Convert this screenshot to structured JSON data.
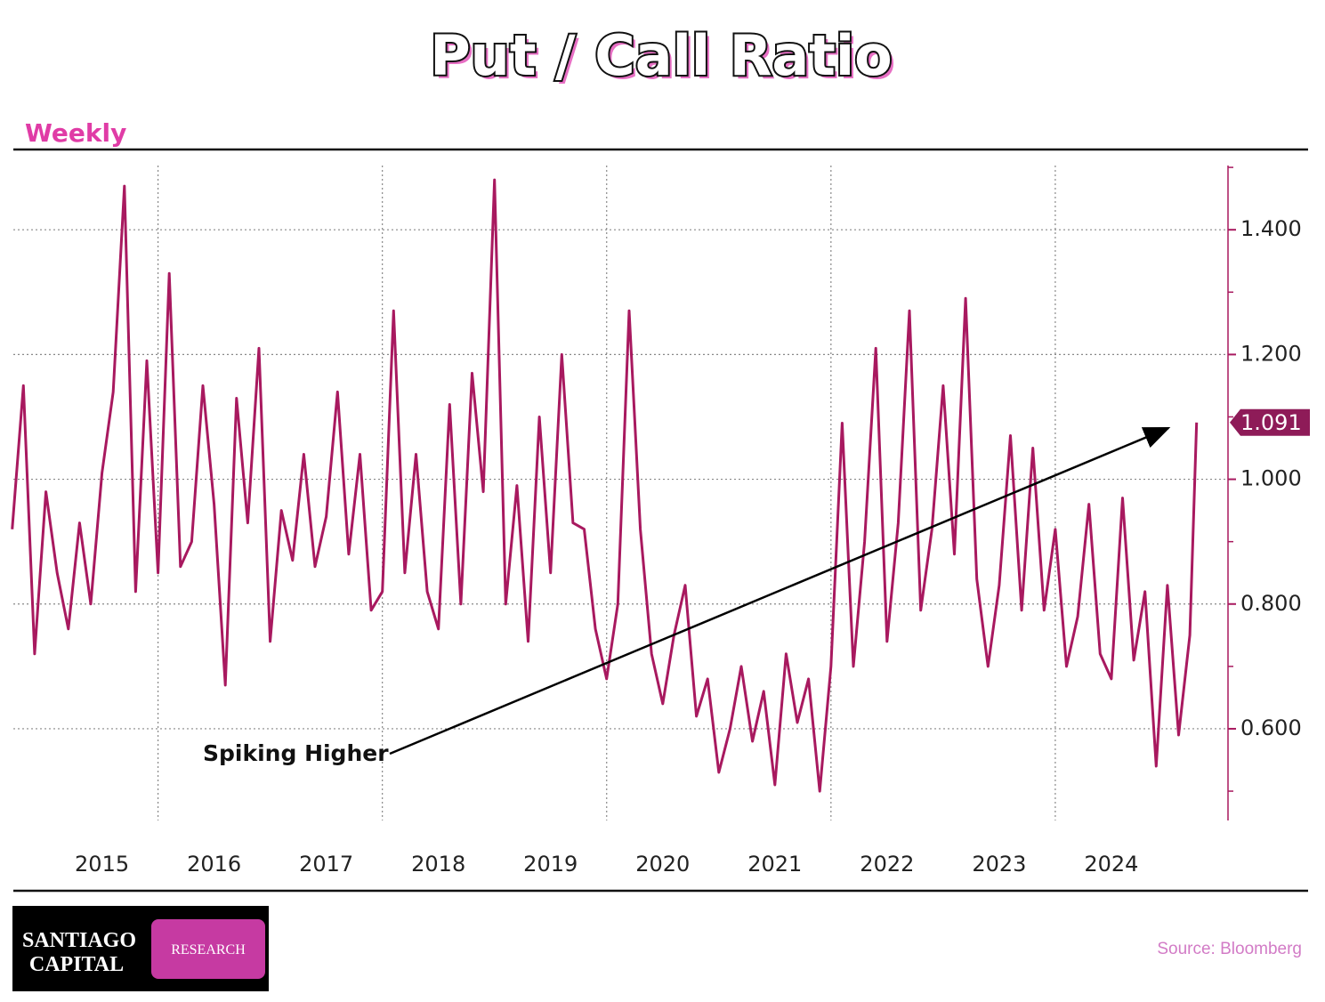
{
  "chart_data": {
    "type": "line",
    "title": "Put / Call Ratio",
    "subtitle": "Weekly",
    "source": "Source: Bloomberg",
    "logo": {
      "name_line1": "SANTIAGO",
      "name_line2": "CAPITAL",
      "badge": "RESEARCH"
    },
    "annotation": "Spiking Higher",
    "x": [
      2014.7,
      2014.8,
      2014.9,
      2015.0,
      2015.1,
      2015.2,
      2015.3,
      2015.4,
      2015.5,
      2015.6,
      2015.7,
      2015.8,
      2015.9,
      2016.0,
      2016.1,
      2016.2,
      2016.3,
      2016.4,
      2016.5,
      2016.6,
      2016.7,
      2016.8,
      2016.9,
      2017.0,
      2017.1,
      2017.2,
      2017.3,
      2017.4,
      2017.5,
      2017.6,
      2017.7,
      2017.8,
      2017.9,
      2018.0,
      2018.1,
      2018.2,
      2018.3,
      2018.4,
      2018.5,
      2018.6,
      2018.7,
      2018.8,
      2018.9,
      2019.0,
      2019.1,
      2019.2,
      2019.3,
      2019.4,
      2019.5,
      2019.6,
      2019.7,
      2019.8,
      2019.9,
      2020.0,
      2020.1,
      2020.2,
      2020.3,
      2020.4,
      2020.5,
      2020.6,
      2020.7,
      2020.8,
      2020.9,
      2021.0,
      2021.1,
      2021.2,
      2021.3,
      2021.4,
      2021.5,
      2021.6,
      2021.7,
      2021.8,
      2021.9,
      2022.0,
      2022.1,
      2022.2,
      2022.3,
      2022.4,
      2022.5,
      2022.6,
      2022.7,
      2022.8,
      2022.9,
      2023.0,
      2023.1,
      2023.2,
      2023.3,
      2023.4,
      2023.5,
      2023.6,
      2023.7,
      2023.8,
      2023.9,
      2024.0,
      2024.1,
      2024.2,
      2024.3,
      2024.4,
      2024.5,
      2024.6,
      2024.7,
      2024.8,
      2024.9,
      2025.0,
      2025.1,
      2025.2,
      2025.26
    ],
    "series": [
      {
        "name": "Put / Call Ratio",
        "color": "#a8195f",
        "values": [
          0.92,
          1.15,
          0.72,
          0.98,
          0.85,
          0.76,
          0.93,
          0.8,
          1.01,
          1.14,
          1.47,
          0.82,
          1.19,
          0.85,
          1.33,
          0.86,
          0.9,
          1.15,
          0.96,
          0.67,
          1.13,
          0.93,
          1.21,
          0.74,
          0.95,
          0.87,
          1.04,
          0.86,
          0.94,
          1.14,
          0.88,
          1.04,
          0.79,
          0.82,
          1.27,
          0.85,
          1.04,
          0.82,
          0.76,
          1.12,
          0.8,
          1.17,
          0.98,
          1.48,
          0.8,
          0.99,
          0.74,
          1.1,
          0.85,
          1.2,
          0.93,
          0.92,
          0.76,
          0.68,
          0.8,
          1.27,
          0.92,
          0.72,
          0.64,
          0.75,
          0.83,
          0.62,
          0.68,
          0.53,
          0.6,
          0.7,
          0.58,
          0.66,
          0.51,
          0.72,
          0.61,
          0.68,
          0.5,
          0.7,
          1.09,
          0.7,
          0.9,
          1.21,
          0.74,
          0.93,
          1.27,
          0.79,
          0.92,
          1.15,
          0.88,
          1.29,
          0.84,
          0.7,
          0.83,
          1.07,
          0.79,
          1.05,
          0.79,
          0.92,
          0.7,
          0.78,
          0.96,
          0.72,
          0.68,
          0.97,
          0.71,
          0.82,
          0.54,
          0.83,
          0.59,
          0.75,
          1.091
        ],
        "end_label": "1.091"
      }
    ],
    "xlim": [
      2014.71,
      2025.54
    ],
    "xticks": [
      {
        "value": 2015.5,
        "label": "2015"
      },
      {
        "value": 2016.5,
        "label": "2016"
      },
      {
        "value": 2017.5,
        "label": "2017"
      },
      {
        "value": 2018.5,
        "label": "2018"
      },
      {
        "value": 2019.5,
        "label": "2019"
      },
      {
        "value": 2020.5,
        "label": "2020"
      },
      {
        "value": 2021.5,
        "label": "2021"
      },
      {
        "value": 2022.5,
        "label": "2022"
      },
      {
        "value": 2023.5,
        "label": "2023"
      },
      {
        "value": 2024.5,
        "label": "2024"
      }
    ],
    "xgrid": [
      2016,
      2018,
      2020,
      2022,
      2024
    ],
    "ylim": [
      0.453,
      1.503
    ],
    "yticks": [
      {
        "value": 0.6,
        "label": "0.600"
      },
      {
        "value": 0.8,
        "label": "0.800"
      },
      {
        "value": 1.0,
        "label": "1.000"
      },
      {
        "value": 1.2,
        "label": "1.200"
      },
      {
        "value": 1.4,
        "label": "1.400"
      }
    ],
    "yminor": [
      0.5,
      0.7,
      0.9,
      1.1,
      1.3,
      1.5
    ],
    "grid": true,
    "axis_side": "right"
  }
}
